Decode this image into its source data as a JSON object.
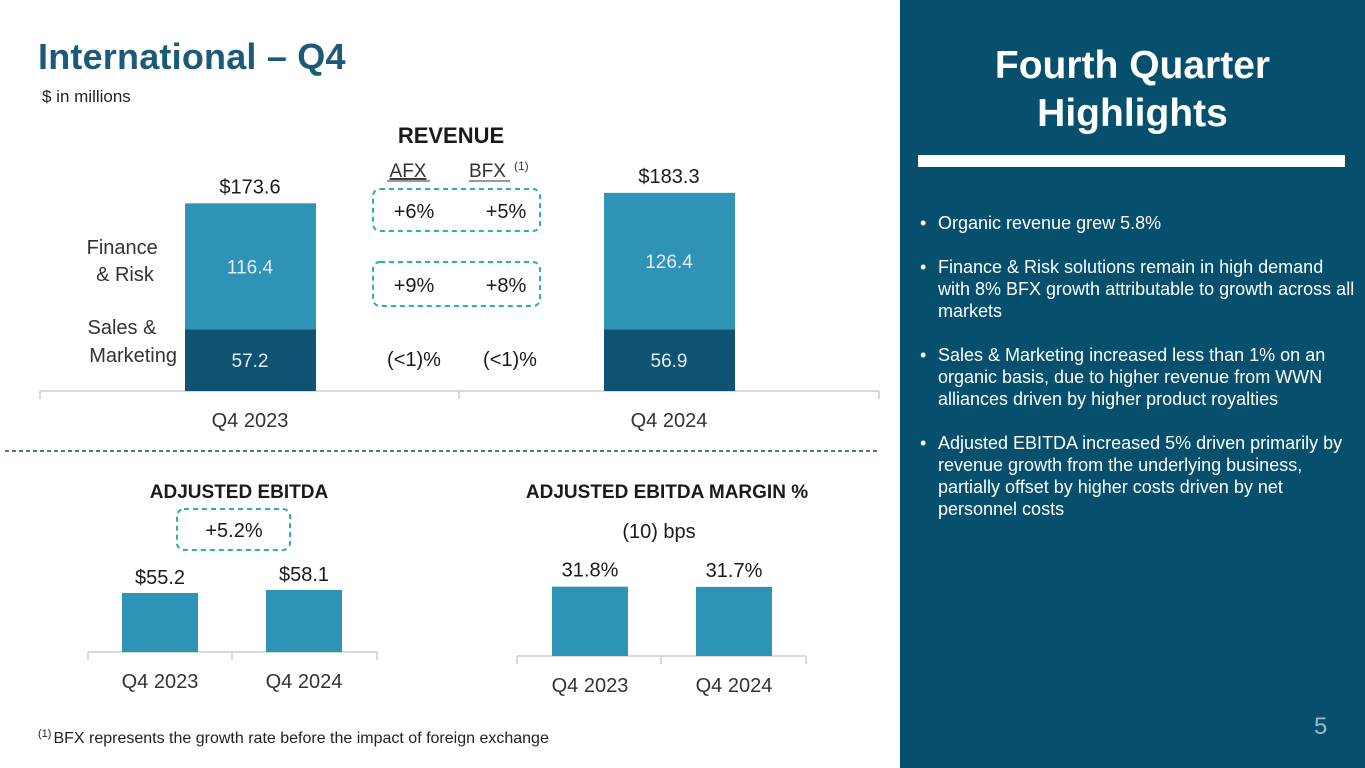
{
  "page": {
    "title": "International – Q4",
    "subtitle": "$ in millions",
    "footnote_marker": "(1)",
    "footnote_text": "BFX represents the growth rate before the impact of foreign exchange",
    "page_number": "5"
  },
  "colors": {
    "title": "#1c5a78",
    "finance_risk": "#2e93b6",
    "sales_marketing": "#0f5272",
    "single_bar": "#2e93b6",
    "dashed_box": "#2bb3a0",
    "panel_bg": "#06506e"
  },
  "highlights": {
    "title_line1": "Fourth Quarter",
    "title_line2": "Highlights",
    "bullets": [
      "Organic revenue grew 5.8%",
      "Finance & Risk solutions remain in high demand with 8% BFX growth attributable to growth across all markets",
      "Sales & Marketing increased less than 1% on an organic basis, due to higher revenue from WWN alliances driven by higher product royalties",
      "Adjusted EBITDA increased 5% driven primarily by revenue growth from the underlying business, partially offset by higher costs driven by net personnel costs"
    ]
  },
  "chart_data": [
    {
      "type": "bar",
      "stacked": true,
      "title": "REVENUE",
      "categories": [
        "Q4 2023",
        "Q4 2024"
      ],
      "series": [
        {
          "name": "Sales & Marketing",
          "label_lines": [
            "Sales &",
            "Marketing"
          ],
          "values": [
            57.2,
            56.9
          ],
          "labels": [
            "57.2",
            "56.9"
          ]
        },
        {
          "name": "Finance & Risk",
          "label_lines": [
            "Finance",
            "& Risk"
          ],
          "values": [
            116.4,
            126.4
          ],
          "labels": [
            "116.4",
            "126.4"
          ]
        }
      ],
      "totals": [
        "$173.6",
        "$183.3"
      ],
      "growth_table": {
        "headers": [
          "AFX",
          "BFX"
        ],
        "header_note": "(1)",
        "rows": [
          {
            "values": [
              "+6%",
              "+5%"
            ],
            "boxed": true
          },
          {
            "values": [
              "+9%",
              "+8%"
            ],
            "boxed": true
          },
          {
            "values": [
              "(<1)%",
              "(<1)%"
            ],
            "boxed": false
          }
        ]
      }
    },
    {
      "type": "bar",
      "title": "ADJUSTED EBITDA",
      "categories": [
        "Q4 2023",
        "Q4 2024"
      ],
      "values": [
        55.2,
        58.1
      ],
      "value_labels": [
        "$55.2",
        "$58.1"
      ],
      "change_label": "+5.2%"
    },
    {
      "type": "bar",
      "title": "ADJUSTED EBITDA MARGIN %",
      "categories": [
        "Q4 2023",
        "Q4 2024"
      ],
      "values": [
        31.8,
        31.7
      ],
      "value_labels": [
        "31.8%",
        "31.7%"
      ],
      "change_label": "(10) bps"
    }
  ]
}
